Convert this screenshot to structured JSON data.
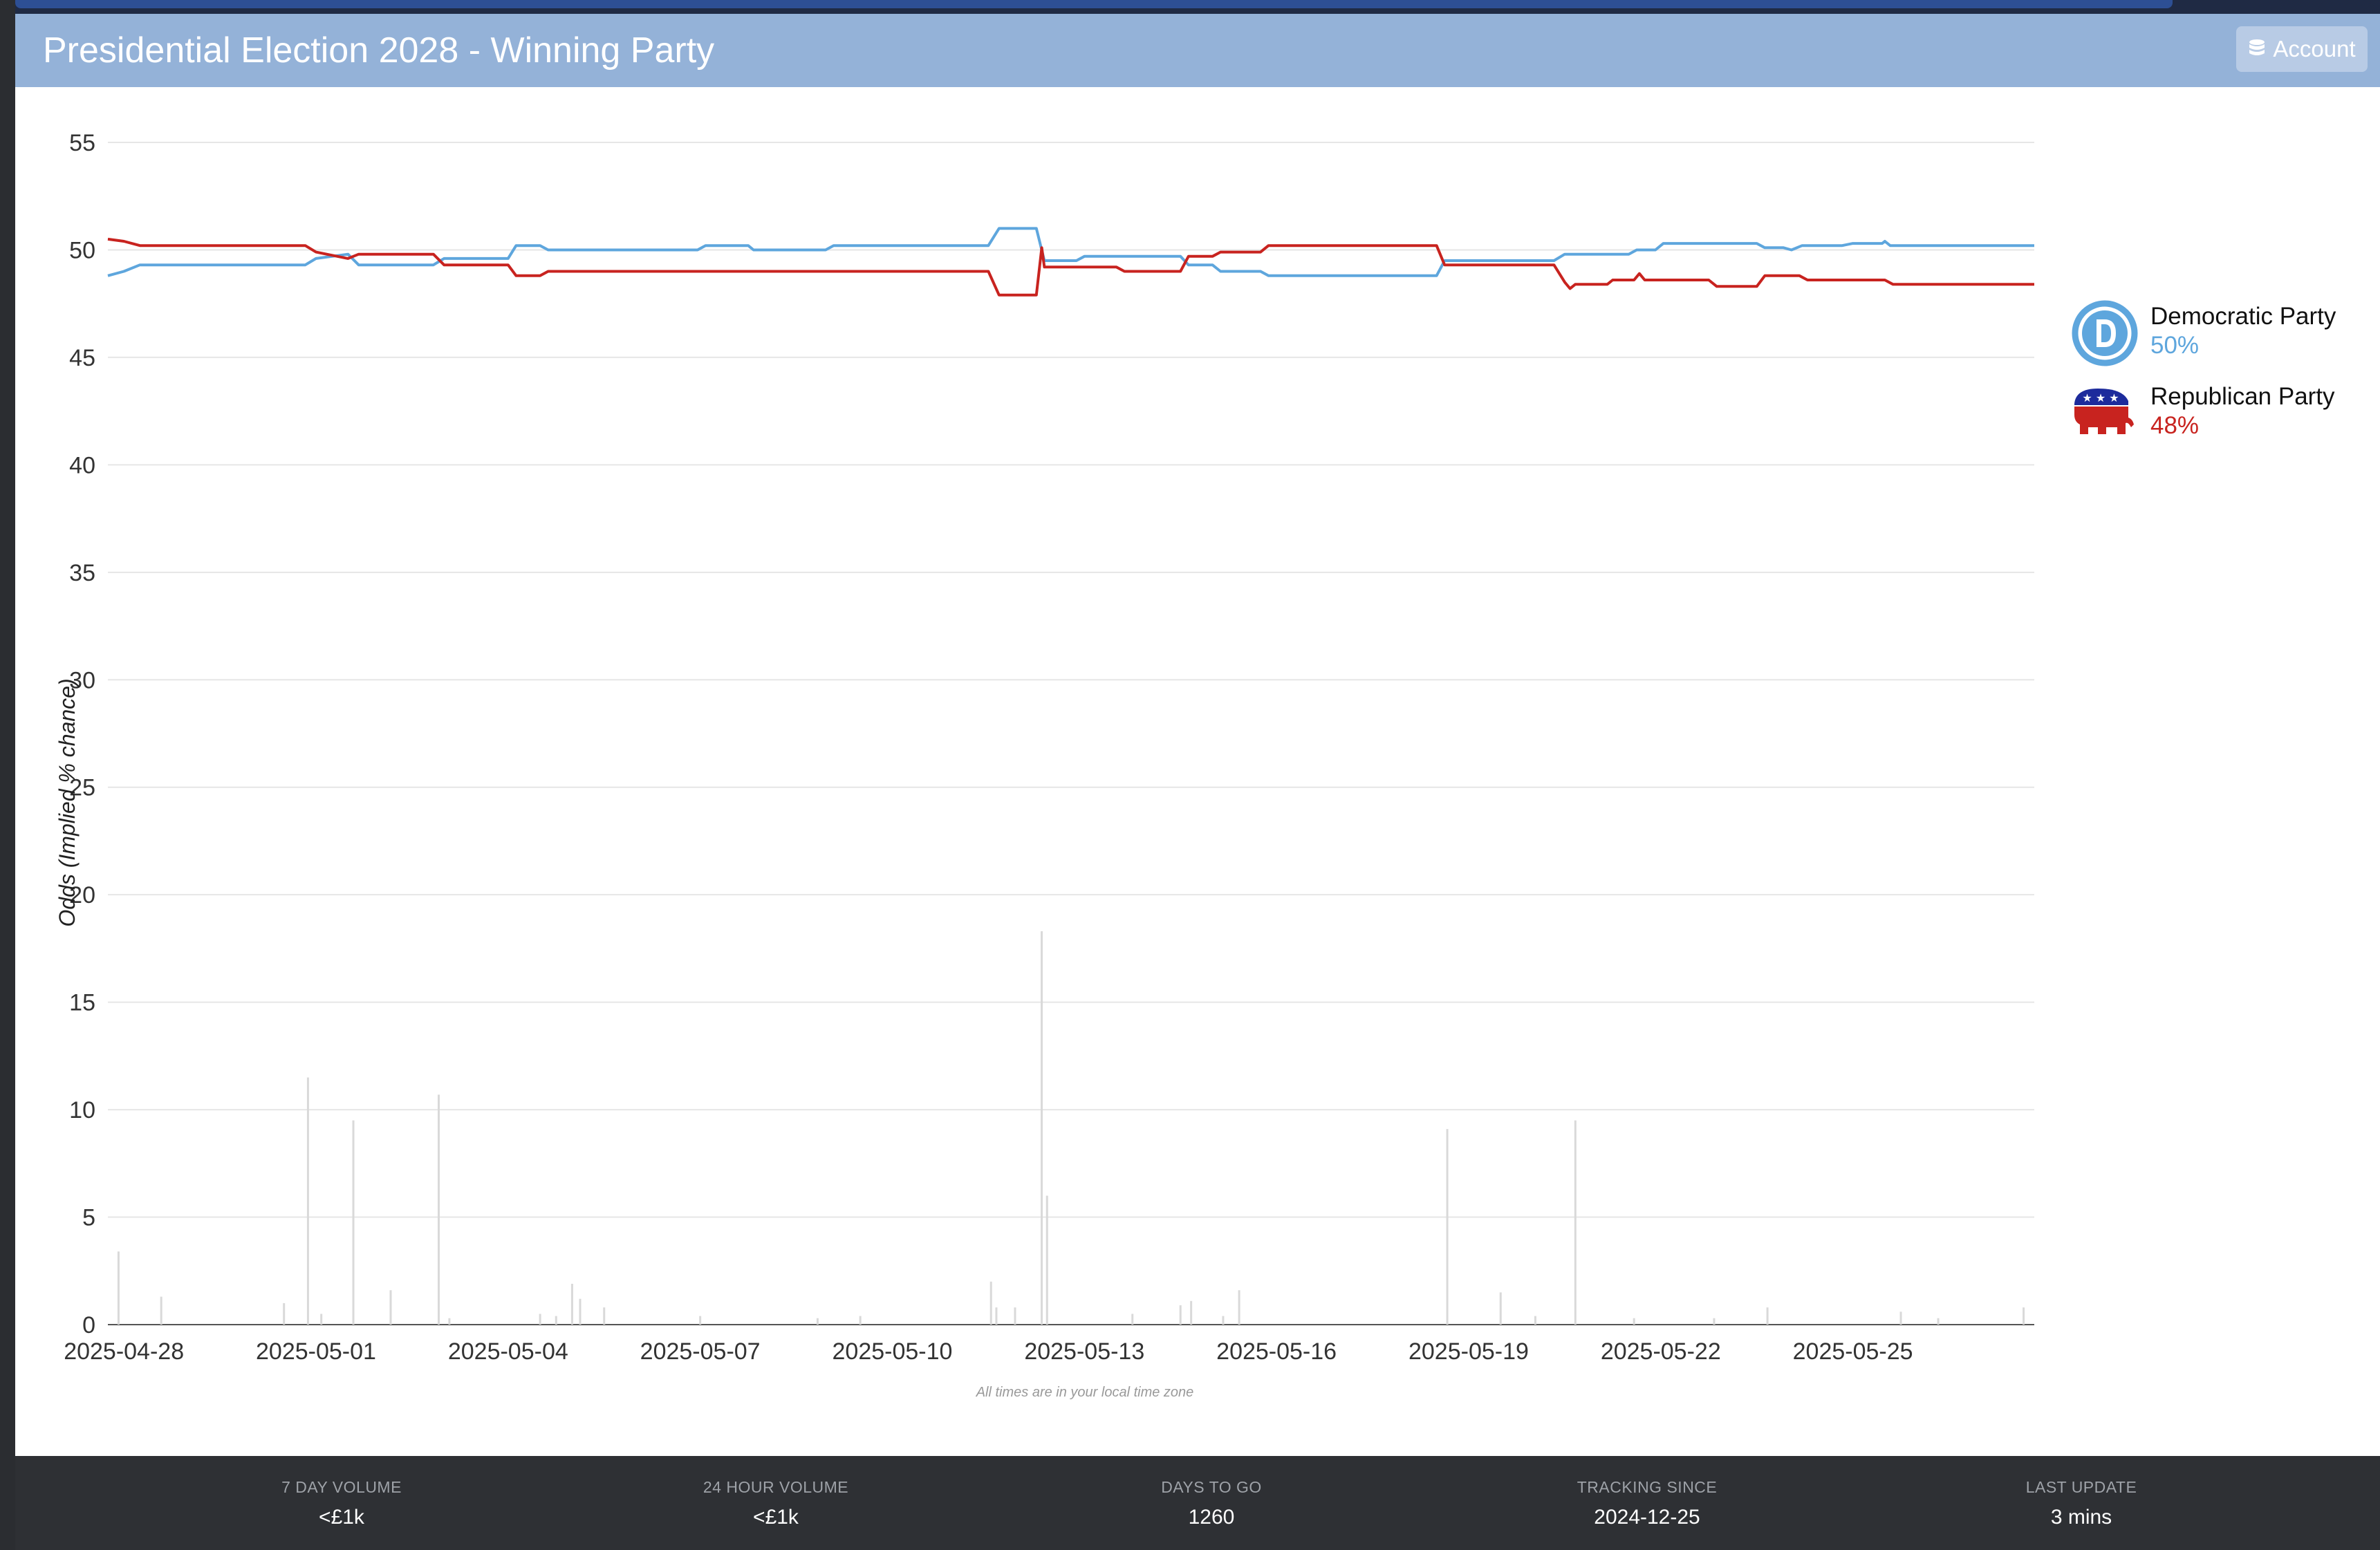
{
  "header": {
    "title": "Presidential Election 2028 - Winning Party",
    "account_label": "Account"
  },
  "legend": [
    {
      "name": "Democratic Party",
      "pct": "50%",
      "color": "#5ea6dd",
      "icon": "democratic-donkey-d-logo"
    },
    {
      "name": "Republican Party",
      "pct": "48%",
      "color": "#c8231f",
      "icon": "republican-elephant-logo"
    }
  ],
  "footer": {
    "stats": [
      {
        "label": "7 DAY VOLUME",
        "value": "<£1k"
      },
      {
        "label": "24 HOUR VOLUME",
        "value": "<£1k"
      },
      {
        "label": "DAYS TO GO",
        "value": "1260"
      },
      {
        "label": "TRACKING SINCE",
        "value": "2024-12-25"
      },
      {
        "label": "LAST UPDATE",
        "value": "3 mins"
      }
    ]
  },
  "chart_data": {
    "type": "line",
    "ylabel": "Odds (Implied % chance)",
    "xlabel": "",
    "note": "All times are in your local time zone",
    "ylim": [
      0,
      55
    ],
    "yticks": [
      0,
      5,
      10,
      15,
      20,
      25,
      30,
      35,
      40,
      45,
      50,
      55
    ],
    "xlim": [
      "2025-04-27T18:00",
      "2025-05-27T20:00"
    ],
    "xticks": [
      "2025-04-28",
      "2025-05-01",
      "2025-05-04",
      "2025-05-07",
      "2025-05-10",
      "2025-05-13",
      "2025-05-16",
      "2025-05-19",
      "2025-05-22",
      "2025-05-25"
    ],
    "grid": true,
    "series": [
      {
        "name": "Democratic Party",
        "color": "#5ea6dd",
        "points": [
          [
            "2025-04-27T18:00",
            48.8
          ],
          [
            "2025-04-28T00:00",
            49.0
          ],
          [
            "2025-04-28T06:00",
            49.3
          ],
          [
            "2025-04-30T20:00",
            49.3
          ],
          [
            "2025-05-01T00:00",
            49.6
          ],
          [
            "2025-05-01T12:00",
            49.8
          ],
          [
            "2025-05-01T16:00",
            49.3
          ],
          [
            "2025-05-02T20:00",
            49.3
          ],
          [
            "2025-05-03T00:00",
            49.6
          ],
          [
            "2025-05-03T12:00",
            49.6
          ],
          [
            "2025-05-04T00:00",
            49.6
          ],
          [
            "2025-05-04T03:00",
            50.2
          ],
          [
            "2025-05-04T12:00",
            50.2
          ],
          [
            "2025-05-04T15:00",
            50.0
          ],
          [
            "2025-05-06T23:00",
            50.0
          ],
          [
            "2025-05-07T02:00",
            50.2
          ],
          [
            "2025-05-07T18:00",
            50.2
          ],
          [
            "2025-05-07T20:00",
            50.0
          ],
          [
            "2025-05-08T23:00",
            50.0
          ],
          [
            "2025-05-09T02:00",
            50.2
          ],
          [
            "2025-05-11T12:00",
            50.2
          ],
          [
            "2025-05-11T16:00",
            51.0
          ],
          [
            "2025-05-12T06:00",
            51.0
          ],
          [
            "2025-05-12T09:00",
            49.5
          ],
          [
            "2025-05-12T21:00",
            49.5
          ],
          [
            "2025-05-13T00:00",
            49.7
          ],
          [
            "2025-05-14T12:00",
            49.7
          ],
          [
            "2025-05-14T15:00",
            49.3
          ],
          [
            "2025-05-15T00:00",
            49.3
          ],
          [
            "2025-05-15T03:00",
            49.0
          ],
          [
            "2025-05-15T18:00",
            49.0
          ],
          [
            "2025-05-15T21:00",
            48.8
          ],
          [
            "2025-05-18T12:00",
            48.8
          ],
          [
            "2025-05-18T15:00",
            49.5
          ],
          [
            "2025-05-20T08:00",
            49.5
          ],
          [
            "2025-05-20T12:00",
            49.8
          ],
          [
            "2025-05-21T12:00",
            49.8
          ],
          [
            "2025-05-21T15:00",
            50.0
          ],
          [
            "2025-05-21T22:00",
            50.0
          ],
          [
            "2025-05-22T01:00",
            50.3
          ],
          [
            "2025-05-23T12:00",
            50.3
          ],
          [
            "2025-05-23T15:00",
            50.1
          ],
          [
            "2025-05-23T22:00",
            50.1
          ],
          [
            "2025-05-24T01:00",
            50.0
          ],
          [
            "2025-05-24T05:00",
            50.2
          ],
          [
            "2025-05-24T20:00",
            50.2
          ],
          [
            "2025-05-25T00:00",
            50.3
          ],
          [
            "2025-05-25T11:00",
            50.3
          ],
          [
            "2025-05-25T12:00",
            50.4
          ],
          [
            "2025-05-25T14:00",
            50.2
          ],
          [
            "2025-05-27T20:00",
            50.2
          ]
        ]
      },
      {
        "name": "Republican Party",
        "color": "#c8231f",
        "points": [
          [
            "2025-04-27T18:00",
            50.5
          ],
          [
            "2025-04-28T00:00",
            50.4
          ],
          [
            "2025-04-28T06:00",
            50.2
          ],
          [
            "2025-04-30T20:00",
            50.2
          ],
          [
            "2025-05-01T00:00",
            49.9
          ],
          [
            "2025-05-01T12:00",
            49.6
          ],
          [
            "2025-05-01T16:00",
            49.8
          ],
          [
            "2025-05-02T20:00",
            49.8
          ],
          [
            "2025-05-03T00:00",
            49.3
          ],
          [
            "2025-05-03T12:00",
            49.3
          ],
          [
            "2025-05-04T00:00",
            49.3
          ],
          [
            "2025-05-04T03:00",
            48.8
          ],
          [
            "2025-05-04T12:00",
            48.8
          ],
          [
            "2025-05-04T15:00",
            49.0
          ],
          [
            "2025-05-11T12:00",
            49.0
          ],
          [
            "2025-05-11T16:00",
            47.9
          ],
          [
            "2025-05-12T06:00",
            47.9
          ],
          [
            "2025-05-12T08:00",
            50.1
          ],
          [
            "2025-05-12T09:00",
            49.2
          ],
          [
            "2025-05-13T12:00",
            49.2
          ],
          [
            "2025-05-13T15:00",
            49.0
          ],
          [
            "2025-05-14T12:00",
            49.0
          ],
          [
            "2025-05-14T15:00",
            49.7
          ],
          [
            "2025-05-15T00:00",
            49.7
          ],
          [
            "2025-05-15T03:00",
            49.9
          ],
          [
            "2025-05-15T18:00",
            49.9
          ],
          [
            "2025-05-15T21:00",
            50.2
          ],
          [
            "2025-05-18T12:00",
            50.2
          ],
          [
            "2025-05-18T15:00",
            49.3
          ],
          [
            "2025-05-20T08:00",
            49.3
          ],
          [
            "2025-05-20T12:00",
            48.5
          ],
          [
            "2025-05-20T14:00",
            48.2
          ],
          [
            "2025-05-20T16:00",
            48.4
          ],
          [
            "2025-05-21T04:00",
            48.4
          ],
          [
            "2025-05-21T06:00",
            48.6
          ],
          [
            "2025-05-21T14:00",
            48.6
          ],
          [
            "2025-05-21T16:00",
            48.9
          ],
          [
            "2025-05-21T18:00",
            48.6
          ],
          [
            "2025-05-22T18:00",
            48.6
          ],
          [
            "2025-05-22T21:00",
            48.3
          ],
          [
            "2025-05-23T12:00",
            48.3
          ],
          [
            "2025-05-23T15:00",
            48.8
          ],
          [
            "2025-05-24T04:00",
            48.8
          ],
          [
            "2025-05-24T07:00",
            48.6
          ],
          [
            "2025-05-25T12:00",
            48.6
          ],
          [
            "2025-05-25T15:00",
            48.4
          ],
          [
            "2025-05-27T20:00",
            48.4
          ]
        ]
      }
    ],
    "volume_bars": [
      [
        "2025-04-27T22:00",
        3.4
      ],
      [
        "2025-04-28T14:00",
        1.3
      ],
      [
        "2025-04-30T12:00",
        1.0
      ],
      [
        "2025-04-30T21:00",
        11.5
      ],
      [
        "2025-05-01T02:00",
        0.5
      ],
      [
        "2025-05-01T14:00",
        9.5
      ],
      [
        "2025-05-02T04:00",
        1.6
      ],
      [
        "2025-05-02T22:00",
        10.7
      ],
      [
        "2025-05-03T02:00",
        0.3
      ],
      [
        "2025-05-04T12:00",
        0.5
      ],
      [
        "2025-05-04T18:00",
        0.4
      ],
      [
        "2025-05-05T00:00",
        1.9
      ],
      [
        "2025-05-05T03:00",
        1.2
      ],
      [
        "2025-05-05T12:00",
        0.8
      ],
      [
        "2025-05-07T00:00",
        0.4
      ],
      [
        "2025-05-08T20:00",
        0.3
      ],
      [
        "2025-05-09T12:00",
        0.4
      ],
      [
        "2025-05-11T13:00",
        2.0
      ],
      [
        "2025-05-11T15:00",
        0.8
      ],
      [
        "2025-05-11T22:00",
        0.8
      ],
      [
        "2025-05-12T08:00",
        18.3
      ],
      [
        "2025-05-12T10:00",
        6.0
      ],
      [
        "2025-05-13T18:00",
        0.5
      ],
      [
        "2025-05-14T12:00",
        0.9
      ],
      [
        "2025-05-14T16:00",
        1.1
      ],
      [
        "2025-05-15T04:00",
        0.4
      ],
      [
        "2025-05-15T10:00",
        1.6
      ],
      [
        "2025-05-18T16:00",
        9.1
      ],
      [
        "2025-05-19T12:00",
        1.5
      ],
      [
        "2025-05-20T01:00",
        0.4
      ],
      [
        "2025-05-20T16:00",
        9.5
      ],
      [
        "2025-05-21T14:00",
        0.3
      ],
      [
        "2025-05-22T20:00",
        0.3
      ],
      [
        "2025-05-23T16:00",
        0.8
      ],
      [
        "2025-05-25T18:00",
        0.6
      ],
      [
        "2025-05-26T08:00",
        0.3
      ],
      [
        "2025-05-27T16:00",
        0.8
      ]
    ]
  }
}
